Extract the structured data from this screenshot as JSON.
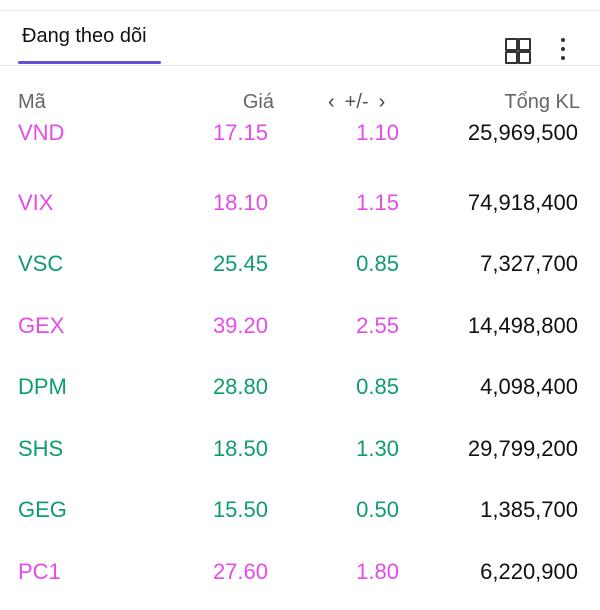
{
  "header": {
    "tab_label": "Đang theo dõi"
  },
  "icons": {
    "grid": "grid-icon",
    "more": "more-vertical-icon"
  },
  "columns": {
    "symbol": "Mã",
    "price": "Giá",
    "change": "+/-",
    "volume": "Tổng KL"
  },
  "colors": {
    "purple": "#e54ce7",
    "green": "#0f9b73",
    "accent": "#6a4fd8"
  },
  "rows": [
    {
      "symbol": "VND",
      "price": "17.15",
      "change": "1.10",
      "volume": "25,969,500",
      "status": "purple"
    },
    {
      "symbol": "VIX",
      "price": "18.10",
      "change": "1.15",
      "volume": "74,918,400",
      "status": "purple"
    },
    {
      "symbol": "VSC",
      "price": "25.45",
      "change": "0.85",
      "volume": "7,327,700",
      "status": "green"
    },
    {
      "symbol": "GEX",
      "price": "39.20",
      "change": "2.55",
      "volume": "14,498,800",
      "status": "purple"
    },
    {
      "symbol": "DPM",
      "price": "28.80",
      "change": "0.85",
      "volume": "4,098,400",
      "status": "green"
    },
    {
      "symbol": "SHS",
      "price": "18.50",
      "change": "1.30",
      "volume": "29,799,200",
      "status": "green"
    },
    {
      "symbol": "GEG",
      "price": "15.50",
      "change": "0.50",
      "volume": "1,385,700",
      "status": "green"
    },
    {
      "symbol": "PC1",
      "price": "27.60",
      "change": "1.80",
      "volume": "6,220,900",
      "status": "purple"
    }
  ]
}
